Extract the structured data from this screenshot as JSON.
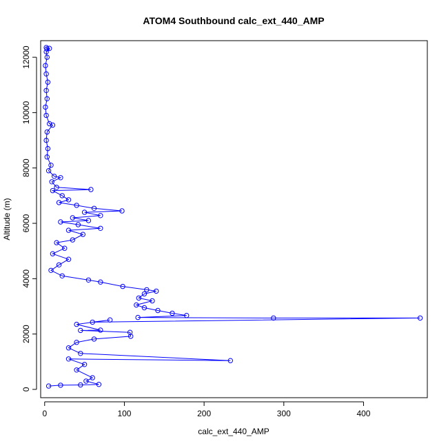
{
  "chart_data": {
    "type": "scatter",
    "title": "ATOM4 Southbound calc_ext_440_AMP",
    "xlabel": "calc_ext_440_AMP",
    "ylabel": "Altitude (m)",
    "xlim": [
      -5,
      480
    ],
    "ylim": [
      -300,
      12600
    ],
    "xticks": [
      0,
      100,
      200,
      300,
      400
    ],
    "yticks": [
      0,
      2000,
      4000,
      6000,
      8000,
      10000,
      12000
    ],
    "grid": false,
    "legend": "none",
    "marker": "open-circle",
    "connected": true,
    "series_color": "#0000ff",
    "series": [
      {
        "name": "",
        "points": [
          {
            "x": 2,
            "y": 12350
          },
          {
            "x": 3,
            "y": 12300
          },
          {
            "x": 6,
            "y": 12320
          },
          {
            "x": 2,
            "y": 12200
          },
          {
            "x": 3,
            "y": 12000
          },
          {
            "x": 1,
            "y": 11700
          },
          {
            "x": 2,
            "y": 11400
          },
          {
            "x": 4,
            "y": 11100
          },
          {
            "x": 2,
            "y": 10800
          },
          {
            "x": 3,
            "y": 10500
          },
          {
            "x": 1,
            "y": 10200
          },
          {
            "x": 2,
            "y": 9900
          },
          {
            "x": 6,
            "y": 9600
          },
          {
            "x": 10,
            "y": 9550
          },
          {
            "x": 3,
            "y": 9300
          },
          {
            "x": 2,
            "y": 9000
          },
          {
            "x": 4,
            "y": 8700
          },
          {
            "x": 3,
            "y": 8400
          },
          {
            "x": 8,
            "y": 8100
          },
          {
            "x": 5,
            "y": 7900
          },
          {
            "x": 12,
            "y": 7700
          },
          {
            "x": 20,
            "y": 7650
          },
          {
            "x": 9,
            "y": 7500
          },
          {
            "x": 15,
            "y": 7300
          },
          {
            "x": 58,
            "y": 7220
          },
          {
            "x": 10,
            "y": 7180
          },
          {
            "x": 22,
            "y": 7000
          },
          {
            "x": 30,
            "y": 6850
          },
          {
            "x": 18,
            "y": 6750
          },
          {
            "x": 40,
            "y": 6650
          },
          {
            "x": 62,
            "y": 6540
          },
          {
            "x": 97,
            "y": 6450
          },
          {
            "x": 50,
            "y": 6400
          },
          {
            "x": 70,
            "y": 6280
          },
          {
            "x": 35,
            "y": 6200
          },
          {
            "x": 55,
            "y": 6100
          },
          {
            "x": 20,
            "y": 6050
          },
          {
            "x": 42,
            "y": 5950
          },
          {
            "x": 70,
            "y": 5820
          },
          {
            "x": 30,
            "y": 5750
          },
          {
            "x": 48,
            "y": 5600
          },
          {
            "x": 35,
            "y": 5400
          },
          {
            "x": 15,
            "y": 5300
          },
          {
            "x": 25,
            "y": 5100
          },
          {
            "x": 10,
            "y": 4900
          },
          {
            "x": 30,
            "y": 4700
          },
          {
            "x": 18,
            "y": 4500
          },
          {
            "x": 8,
            "y": 4300
          },
          {
            "x": 22,
            "y": 4100
          },
          {
            "x": 55,
            "y": 3950
          },
          {
            "x": 70,
            "y": 3880
          },
          {
            "x": 98,
            "y": 3720
          },
          {
            "x": 128,
            "y": 3600
          },
          {
            "x": 140,
            "y": 3550
          },
          {
            "x": 125,
            "y": 3450
          },
          {
            "x": 118,
            "y": 3300
          },
          {
            "x": 135,
            "y": 3200
          },
          {
            "x": 115,
            "y": 3050
          },
          {
            "x": 125,
            "y": 2950
          },
          {
            "x": 142,
            "y": 2850
          },
          {
            "x": 160,
            "y": 2750
          },
          {
            "x": 178,
            "y": 2670
          },
          {
            "x": 117,
            "y": 2600
          },
          {
            "x": 287,
            "y": 2580
          },
          {
            "x": 471,
            "y": 2580
          },
          {
            "x": 60,
            "y": 2430
          },
          {
            "x": 82,
            "y": 2510
          },
          {
            "x": 40,
            "y": 2350
          },
          {
            "x": 70,
            "y": 2140
          },
          {
            "x": 45,
            "y": 2130
          },
          {
            "x": 107,
            "y": 2060
          },
          {
            "x": 108,
            "y": 1920
          },
          {
            "x": 62,
            "y": 1820
          },
          {
            "x": 40,
            "y": 1700
          },
          {
            "x": 30,
            "y": 1500
          },
          {
            "x": 45,
            "y": 1300
          },
          {
            "x": 233,
            "y": 1040
          },
          {
            "x": 30,
            "y": 1100
          },
          {
            "x": 50,
            "y": 900
          },
          {
            "x": 40,
            "y": 700
          },
          {
            "x": 60,
            "y": 420
          },
          {
            "x": 52,
            "y": 300
          },
          {
            "x": 68,
            "y": 180
          },
          {
            "x": 45,
            "y": 160
          },
          {
            "x": 20,
            "y": 150
          },
          {
            "x": 5,
            "y": 120
          }
        ]
      }
    ]
  }
}
